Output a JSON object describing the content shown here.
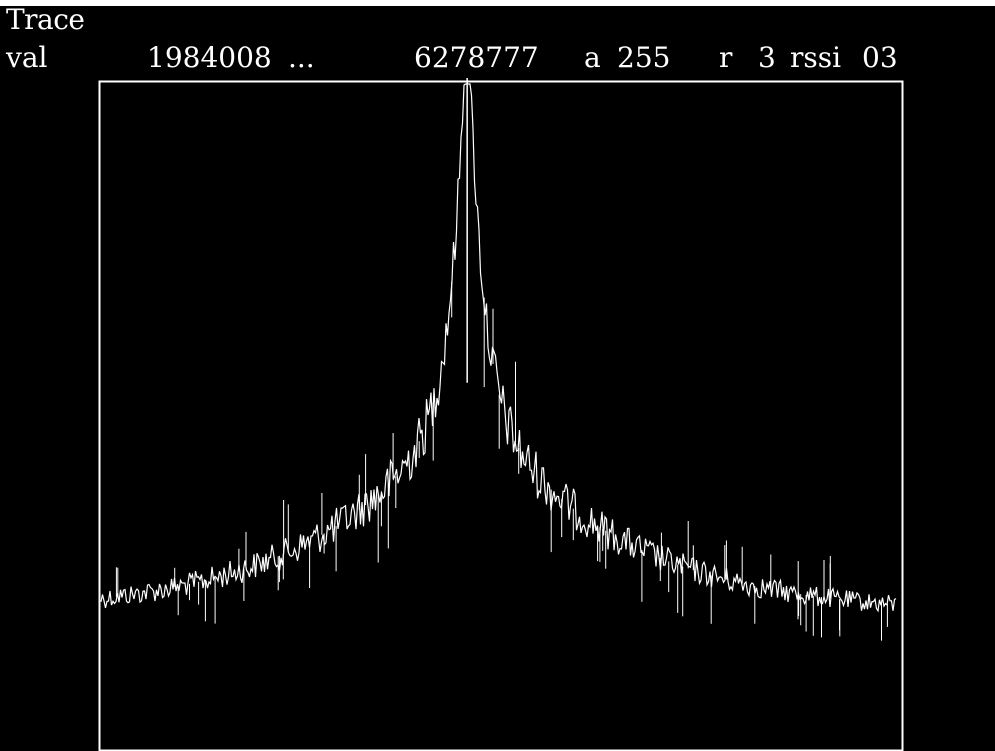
{
  "window": {
    "title": "Trace"
  },
  "header": {
    "label": "val",
    "start_value": "1984008",
    "ellipsis": "...",
    "end_value": "6278777",
    "a_label": "a",
    "a_value": "255",
    "r_label": "r",
    "r_value": "3",
    "rssi_label": "rssi",
    "rssi_value": "03"
  },
  "colors": {
    "background": "#000000",
    "trace": "#ffffff",
    "frame": "#ffffff"
  },
  "trace": {
    "type": "spectrum",
    "peak_position": 0.46,
    "peak_level": 1.0,
    "baseline_level": 0.2,
    "noise": "high"
  }
}
